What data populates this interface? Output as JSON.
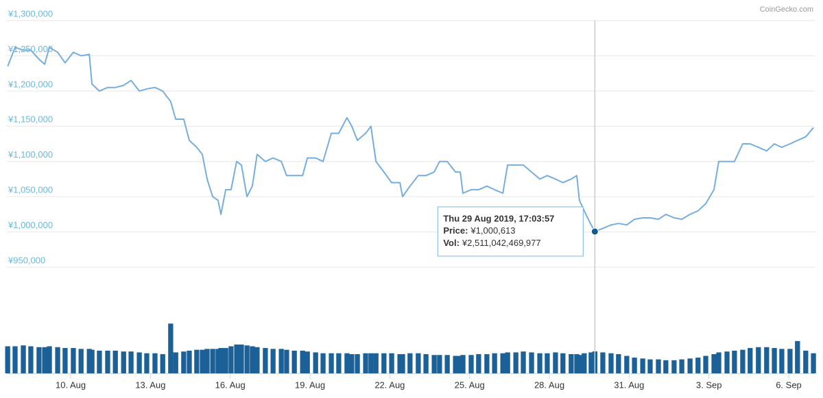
{
  "chart_data": {
    "type": "line",
    "credit": "CoinGecko.com",
    "x": [
      7.63,
      7.91,
      8.22,
      8.5,
      8.81,
      9.02,
      9.2,
      9.51,
      9.79,
      10.1,
      10.39,
      10.7,
      10.8,
      11.08,
      11.39,
      11.68,
      11.99,
      12.27,
      12.58,
      12.86,
      13.17,
      13.46,
      13.76,
      13.95,
      14.25,
      14.46,
      14.74,
      14.95,
      15.13,
      15.34,
      15.54,
      15.65,
      15.83,
      16.03,
      16.24,
      16.42,
      16.63,
      16.83,
      17.01,
      17.32,
      17.61,
      17.92,
      18.12,
      18.41,
      18.72,
      18.9,
      19.21,
      19.49,
      19.8,
      20.08,
      20.39,
      20.57,
      20.78,
      21.09,
      21.29,
      21.48,
      21.78,
      22.07,
      22.38,
      22.48,
      22.76,
      23.07,
      23.36,
      23.67,
      23.87,
      24.16,
      24.47,
      24.65,
      24.75,
      25.06,
      25.34,
      25.65,
      25.94,
      26.25,
      26.43,
      26.74,
      27.02,
      27.33,
      27.64,
      27.92,
      28.23,
      28.51,
      28.82,
      29.03,
      29.13,
      29.31,
      29.57,
      29.71,
      30.01,
      30.32,
      30.6,
      30.91,
      31.2,
      31.51,
      31.79,
      32.1,
      32.38,
      32.69,
      32.98,
      33.29,
      33.59,
      33.88,
      34.19,
      34.37,
      34.68,
      34.96,
      35.27,
      35.55,
      35.86,
      36.17,
      36.46,
      36.74,
      37.05,
      37.33,
      37.64,
      37.93
    ],
    "series": [
      {
        "name": "Price",
        "type": "line",
        "color": "#75addf",
        "values": [
          1235000,
          1262000,
          1258000,
          1258000,
          1245000,
          1238000,
          1262000,
          1255000,
          1240000,
          1255000,
          1250000,
          1252000,
          1210000,
          1200000,
          1205000,
          1205000,
          1208000,
          1215000,
          1200000,
          1203000,
          1205000,
          1200000,
          1185000,
          1160000,
          1160000,
          1130000,
          1120000,
          1110000,
          1075000,
          1050000,
          1045000,
          1025000,
          1060000,
          1060000,
          1100000,
          1095000,
          1050000,
          1065000,
          1110000,
          1100000,
          1105000,
          1100000,
          1080000,
          1080000,
          1080000,
          1105000,
          1105000,
          1100000,
          1140000,
          1140000,
          1162000,
          1150000,
          1130000,
          1140000,
          1150000,
          1100000,
          1085000,
          1070000,
          1070000,
          1050000,
          1065000,
          1080000,
          1080000,
          1085000,
          1100000,
          1100000,
          1085000,
          1085000,
          1055000,
          1060000,
          1060000,
          1065000,
          1060000,
          1055000,
          1095000,
          1095000,
          1095000,
          1085000,
          1075000,
          1080000,
          1075000,
          1070000,
          1075000,
          1080000,
          1045000,
          1030000,
          1010000,
          1000613,
          1005000,
          1010000,
          1012000,
          1010000,
          1018000,
          1020000,
          1020000,
          1018000,
          1025000,
          1020000,
          1018000,
          1025000,
          1030000,
          1040000,
          1060000,
          1100000,
          1100000,
          1100000,
          1125000,
          1125000,
          1120000,
          1115000,
          1125000,
          1120000,
          1125000,
          1130000,
          1135000,
          1148000
        ],
        "value_labels": [
          null,
          null,
          null,
          null,
          null,
          null,
          null,
          null,
          null,
          null,
          null,
          null,
          null,
          null,
          null,
          null,
          null,
          null,
          null,
          null,
          null,
          null,
          null,
          null,
          null,
          null,
          null,
          null,
          null,
          null,
          null,
          null,
          null,
          null,
          null,
          null,
          null,
          null,
          null,
          null,
          null,
          null,
          null,
          null,
          null,
          null,
          null,
          null,
          null,
          null,
          null,
          null,
          null,
          null,
          null,
          null,
          null,
          null,
          null,
          null,
          null,
          null,
          null,
          null,
          null,
          null,
          null,
          null,
          null,
          null,
          null,
          null,
          null,
          null,
          null,
          null,
          null,
          null,
          null,
          null,
          null,
          null,
          null,
          null,
          null,
          null,
          null,
          "¥1,000,613",
          null,
          null,
          null,
          null,
          null,
          null,
          null,
          null,
          null,
          null,
          null,
          null,
          null,
          null,
          null,
          null,
          null,
          null,
          null,
          null,
          null,
          null,
          null,
          null,
          null,
          null,
          null,
          null
        ]
      },
      {
        "name": "Vol",
        "type": "bar",
        "axis": "y2",
        "color": "#1b6096",
        "values": [
          3100000000000.0,
          3100000000000.0,
          3200000000000.0,
          3100000000000.0,
          3000000000000.0,
          3000000000000.0,
          3100000000000.0,
          3000000000000.0,
          2900000000000.0,
          2900000000000.0,
          2800000000000.0,
          2800000000000.0,
          2700000000000.0,
          2600000000000.0,
          2600000000000.0,
          2600000000000.0,
          2500000000000.0,
          2500000000000.0,
          2400000000000.0,
          2300000000000.0,
          2300000000000.0,
          2200000000000.0,
          5700000000000.0,
          2400000000000.0,
          2500000000000.0,
          2600000000000.0,
          2700000000000.0,
          2700000000000.0,
          2800000000000.0,
          2800000000000.0,
          2800000000000.0,
          2900000000000.0,
          2900000000000.0,
          3100000000000.0,
          3300000000000.0,
          3300000000000.0,
          3200000000000.0,
          3100000000000.0,
          3000000000000.0,
          2900000000000.0,
          2800000000000.0,
          2800000000000.0,
          2700000000000.0,
          2600000000000.0,
          2600000000000.0,
          2500000000000.0,
          2400000000000.0,
          2300000000000.0,
          2300000000000.0,
          2300000000000.0,
          2300000000000.0,
          2200000000000.0,
          2200000000000.0,
          2300000000000.0,
          2300000000000.0,
          2300000000000.0,
          2300000000000.0,
          2300000000000.0,
          2200000000000.0,
          2200000000000.0,
          2300000000000.0,
          2300000000000.0,
          2200000000000.0,
          2100000000000.0,
          2100000000000.0,
          2100000000000.0,
          2000000000000.0,
          2000000000000.0,
          2100000000000.0,
          2100000000000.0,
          2200000000000.0,
          2200000000000.0,
          2300000000000.0,
          2300000000000.0,
          2400000000000.0,
          2400000000000.0,
          2500000000000.0,
          2400000000000.0,
          2300000000000.0,
          2300000000000.0,
          2400000000000.0,
          2300000000000.0,
          2200000000000.0,
          2200000000000.0,
          2100000000000.0,
          2300000000000.0,
          2400000000000.0,
          2511042469977,
          2400000000000.0,
          2300000000000.0,
          2200000000000.0,
          2000000000000.0,
          1800000000000.0,
          1700000000000.0,
          1600000000000.0,
          1600000000000.0,
          1500000000000.0,
          1500000000000.0,
          1600000000000.0,
          1700000000000.0,
          1800000000000.0,
          2000000000000.0,
          2200000000000.0,
          2400000000000.0,
          2500000000000.0,
          2600000000000.0,
          2700000000000.0,
          2900000000000.0,
          3000000000000.0,
          3000000000000.0,
          2900000000000.0,
          2800000000000.0,
          2800000000000.0,
          3700000000000.0,
          2600000000000.0,
          2300000000000.0
        ],
        "value_labels": [
          null,
          null,
          null,
          null,
          null,
          null,
          null,
          null,
          null,
          null,
          null,
          null,
          null,
          null,
          null,
          null,
          null,
          null,
          null,
          null,
          null,
          null,
          null,
          null,
          null,
          null,
          null,
          null,
          null,
          null,
          null,
          null,
          null,
          null,
          null,
          null,
          null,
          null,
          null,
          null,
          null,
          null,
          null,
          null,
          null,
          null,
          null,
          null,
          null,
          null,
          null,
          null,
          null,
          null,
          null,
          null,
          null,
          null,
          null,
          null,
          null,
          null,
          null,
          null,
          null,
          null,
          null,
          null,
          null,
          null,
          null,
          null,
          null,
          null,
          null,
          null,
          null,
          null,
          null,
          null,
          null,
          null,
          null,
          null,
          null,
          null,
          null,
          "¥2,511,042,469,977",
          null,
          null,
          null,
          null,
          null,
          null,
          null,
          null,
          null,
          null,
          null,
          null,
          null,
          null,
          null,
          null,
          null,
          null,
          null,
          null,
          null,
          null,
          null,
          null,
          null,
          null,
          null,
          null
        ]
      }
    ],
    "tooltip": {
      "title": "Thu 29 Aug 2019, 17:03:57",
      "price_label": "Price:",
      "vol_label": "Vol:"
    },
    "xlim": [
      7.6,
      37.98
    ],
    "xticks": [
      {
        "value": 10,
        "label": "10. Aug"
      },
      {
        "value": 13,
        "label": "13. Aug"
      },
      {
        "value": 16,
        "label": "16. Aug"
      },
      {
        "value": 19,
        "label": "19. Aug"
      },
      {
        "value": 22,
        "label": "22. Aug"
      },
      {
        "value": 25,
        "label": "25. Aug"
      },
      {
        "value": 28,
        "label": "28. Aug"
      },
      {
        "value": 31,
        "label": "31. Aug"
      },
      {
        "value": 34,
        "label": "3. Sep"
      },
      {
        "value": 37,
        "label": "6. Sep"
      }
    ],
    "ylim": [
      950000,
      1300000
    ],
    "yticks": [
      {
        "value": 950000,
        "label": "¥950,000"
      },
      {
        "value": 1000000,
        "label": "¥1,000,000"
      },
      {
        "value": 1050000,
        "label": "¥1,050,000"
      },
      {
        "value": 1100000,
        "label": "¥1,100,000"
      },
      {
        "value": 1150000,
        "label": "¥1,150,000"
      },
      {
        "value": 1200000,
        "label": "¥1,200,000"
      },
      {
        "value": 1250000,
        "label": "¥1,250,000"
      },
      {
        "value": 1300000,
        "label": "¥1,300,000"
      }
    ],
    "y2lim": [
      0,
      10200000000000
    ],
    "grid": true
  }
}
